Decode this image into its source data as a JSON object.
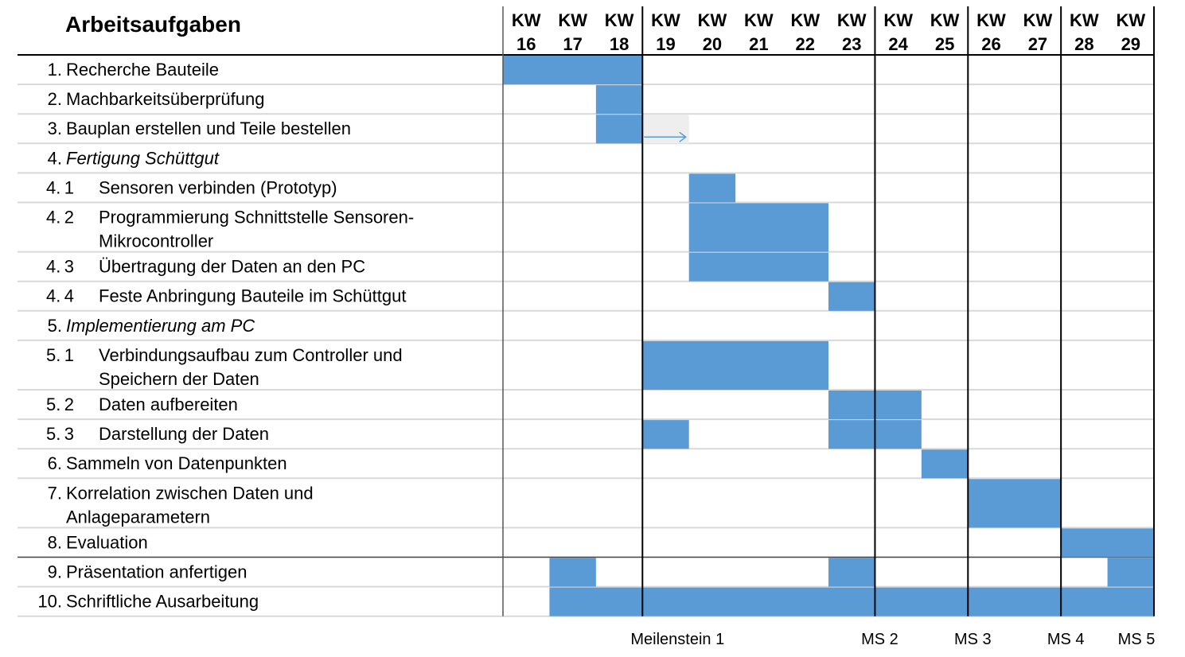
{
  "chart_data": {
    "type": "gantt",
    "title": "Arbeitsaufgaben",
    "weeks": [
      {
        "label_top": "KW",
        "label_bottom": "16"
      },
      {
        "label_top": "KW",
        "label_bottom": "17"
      },
      {
        "label_top": "KW",
        "label_bottom": "18"
      },
      {
        "label_top": "KW",
        "label_bottom": "19"
      },
      {
        "label_top": "KW",
        "label_bottom": "20"
      },
      {
        "label_top": "KW",
        "label_bottom": "21"
      },
      {
        "label_top": "KW",
        "label_bottom": "22"
      },
      {
        "label_top": "KW",
        "label_bottom": "23"
      },
      {
        "label_top": "KW",
        "label_bottom": "24"
      },
      {
        "label_top": "KW",
        "label_bottom": "25"
      },
      {
        "label_top": "KW",
        "label_bottom": "26"
      },
      {
        "label_top": "KW",
        "label_bottom": "27"
      },
      {
        "label_top": "KW",
        "label_bottom": "28"
      },
      {
        "label_top": "KW",
        "label_bottom": "29"
      }
    ],
    "tasks": [
      {
        "num": "1.",
        "lines": [
          "Recherche Bauteile"
        ],
        "italic": false,
        "bars": [
          [
            16,
            18
          ]
        ]
      },
      {
        "num": "2.",
        "lines": [
          "Machbarkeitsüberprüfung"
        ],
        "italic": false,
        "bars": [
          [
            18,
            18
          ]
        ]
      },
      {
        "num": "3.",
        "lines": [
          "Bauplan erstellen und Teile bestellen"
        ],
        "italic": false,
        "bars": [
          [
            18,
            18
          ]
        ],
        "extension": [
          19,
          19
        ]
      },
      {
        "num": "4.",
        "lines": [
          "Fertigung Schüttgut"
        ],
        "italic": true,
        "bars": []
      },
      {
        "num": "4.1",
        "lines": [
          "Sensoren verbinden (Prototyp)"
        ],
        "italic": false,
        "bars": [
          [
            20,
            20
          ]
        ]
      },
      {
        "num": "4.2",
        "lines": [
          "Programmierung Schnittstelle Sensoren-",
          "Mikrocontroller"
        ],
        "italic": false,
        "bars": [
          [
            20,
            22
          ]
        ]
      },
      {
        "num": "4.3",
        "lines": [
          "Übertragung der Daten an den PC"
        ],
        "italic": false,
        "bars": [
          [
            20,
            22
          ]
        ]
      },
      {
        "num": "4.4",
        "lines": [
          "Feste Anbringung Bauteile im Schüttgut"
        ],
        "italic": false,
        "bars": [
          [
            23,
            23
          ]
        ]
      },
      {
        "num": "5.",
        "lines": [
          "Implementierung am PC"
        ],
        "italic": true,
        "bars": []
      },
      {
        "num": "5.1",
        "lines": [
          "Verbindungsaufbau zum Controller und",
          "Speichern der Daten"
        ],
        "italic": false,
        "bars": [
          [
            19,
            22
          ]
        ]
      },
      {
        "num": "5.2",
        "lines": [
          "Daten aufbereiten"
        ],
        "italic": false,
        "bars": [
          [
            23,
            24
          ]
        ]
      },
      {
        "num": "5.3",
        "lines": [
          "Darstellung der Daten"
        ],
        "italic": false,
        "bars": [
          [
            19,
            19
          ],
          [
            23,
            24
          ]
        ]
      },
      {
        "num": "6.",
        "lines": [
          "Sammeln von Datenpunkten"
        ],
        "italic": false,
        "bars": [
          [
            25,
            25
          ]
        ]
      },
      {
        "num": "7.",
        "lines": [
          "Korrelation zwischen Daten und",
          "Anlageparametern"
        ],
        "italic": false,
        "bars": [
          [
            26,
            27
          ]
        ]
      },
      {
        "num": "8.",
        "lines": [
          "Evaluation"
        ],
        "italic": false,
        "bars": [
          [
            28,
            29
          ]
        ]
      },
      {
        "num": "9.",
        "lines": [
          "Präsentation anfertigen"
        ],
        "italic": false,
        "bars": [
          [
            17,
            17
          ],
          [
            23,
            23
          ],
          [
            29,
            29
          ]
        ]
      },
      {
        "num": "10.",
        "lines": [
          "Schriftliche Ausarbeitung"
        ],
        "italic": false,
        "bars": [
          [
            17,
            29
          ]
        ]
      }
    ],
    "milestones": [
      {
        "label": "Meilenstein 1",
        "after_week": 18
      },
      {
        "label": "MS 2",
        "after_week": 23
      },
      {
        "label": "MS 3",
        "after_week": 25
      },
      {
        "label": "MS 4",
        "after_week": 27
      },
      {
        "label": "MS 5",
        "after_week": 29
      }
    ],
    "colors": {
      "bar": "#5b9bd5",
      "extension_fill": "#eeeeee",
      "extension_arrow": "#5b9bd5",
      "row_line": "#d9d9d9",
      "milestone_line": "#000000"
    }
  }
}
